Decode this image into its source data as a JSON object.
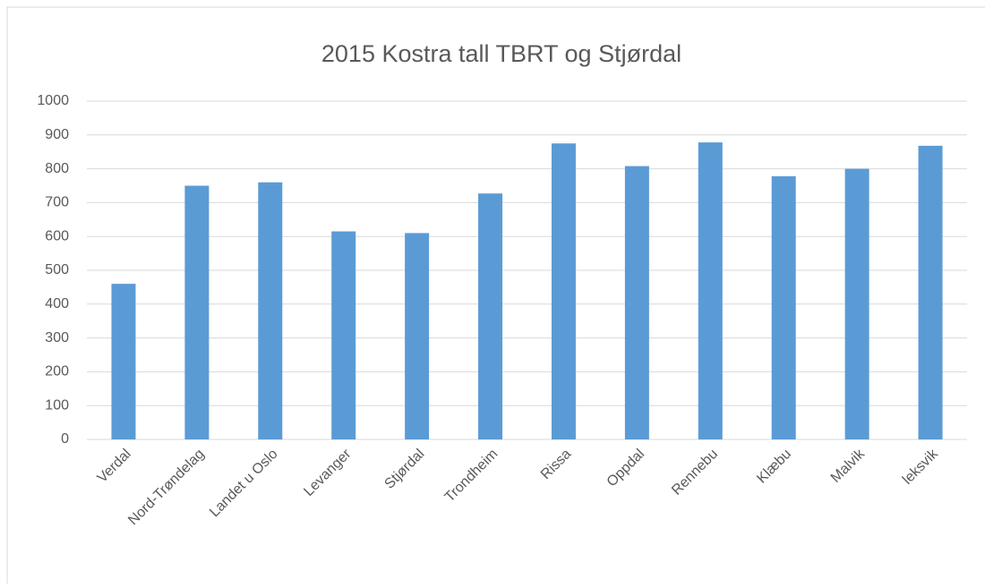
{
  "chart_data": {
    "type": "bar",
    "title": "2015 Kostra tall TBRT og Stjørdal",
    "categories": [
      "Verdal",
      "Nord-Trøndelag",
      "Landet u Oslo",
      "Levanger",
      "Stjørdal",
      "Trondheim",
      "Rissa",
      "Oppdal",
      "Rennebu",
      "Klæbu",
      "Malvik",
      "leksvik"
    ],
    "values": [
      460,
      750,
      760,
      615,
      610,
      727,
      875,
      808,
      878,
      778,
      800,
      868
    ],
    "color": "#5b9bd5",
    "ylim": [
      0,
      1000
    ],
    "yticks": [
      0,
      100,
      200,
      300,
      400,
      500,
      600,
      700,
      800,
      900,
      1000
    ],
    "grid": true
  }
}
